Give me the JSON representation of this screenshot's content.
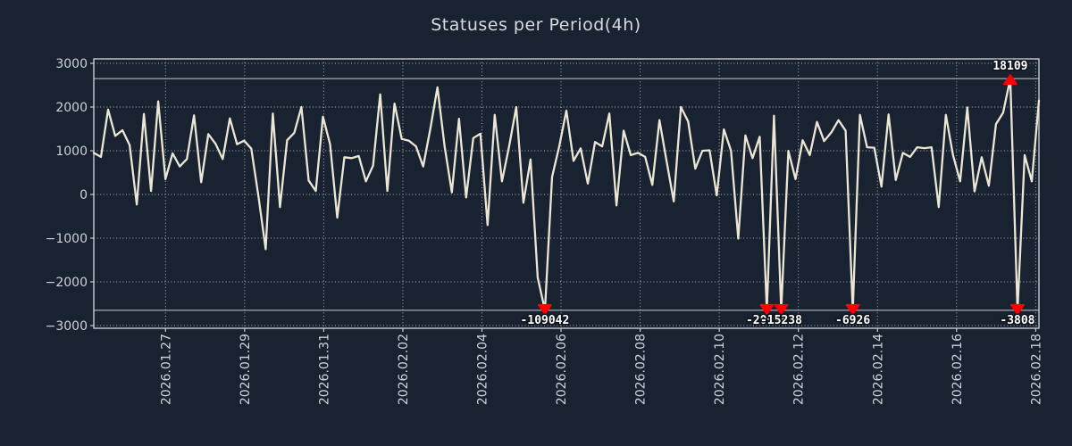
{
  "chart_data": {
    "type": "line",
    "title": "Statuses per Period(4h)",
    "xlabel": "",
    "ylabel": "",
    "period": "4h",
    "ylim": [
      -3000,
      3000
    ],
    "clip_value": 2650,
    "grid": true,
    "legend": null,
    "x_tick_labels": [
      "2026.01.27",
      "2026.01.29",
      "2026.01.31",
      "2026.02.02",
      "2026.02.04",
      "2026.02.06",
      "2026.02.08",
      "2026.02.10",
      "2026.02.12",
      "2026.02.14",
      "2026.02.16",
      "2026.02.18"
    ],
    "y_ticks": [
      3000,
      2000,
      1000,
      0,
      -1000,
      -2000,
      -3000
    ],
    "y_tick_labels": [
      "3000",
      "2000",
      "1000",
      "0",
      "−1000",
      "−2000",
      "−3000"
    ],
    "series": [
      {
        "name": "statuses",
        "values": [
          950,
          860,
          1940,
          1340,
          1470,
          1130,
          -230,
          1840,
          80,
          2130,
          350,
          940,
          640,
          810,
          1810,
          280,
          1380,
          1160,
          810,
          1740,
          1150,
          1230,
          1050,
          -40,
          -1250,
          1850,
          -290,
          1240,
          1410,
          2000,
          320,
          80,
          1780,
          1150,
          -530,
          850,
          830,
          880,
          300,
          660,
          2290,
          80,
          2080,
          1270,
          1230,
          1100,
          640,
          1500,
          2450,
          1100,
          50,
          1730,
          -70,
          1290,
          1390,
          -700,
          1820,
          300,
          1100,
          2000,
          -190,
          800,
          -1900,
          -109042,
          400,
          1100,
          1918,
          770,
          1055,
          250,
          1200,
          1100,
          1850,
          -250,
          1460,
          900,
          950,
          860,
          220,
          1700,
          760,
          -160,
          2000,
          1670,
          590,
          1000,
          1010,
          -20,
          1490,
          1000,
          -1010,
          1350,
          830,
          1320,
          -20925,
          1800,
          -15238,
          1000,
          350,
          1240,
          900,
          1660,
          1220,
          1420,
          1700,
          1460,
          -6926,
          1820,
          1080,
          1070,
          180,
          1830,
          330,
          950,
          860,
          1080,
          1060,
          1080,
          -290,
          1820,
          900,
          300,
          1990,
          70,
          850,
          200,
          1610,
          1870,
          18109,
          -3808,
          900,
          300,
          2150
        ]
      }
    ],
    "annotations": [
      {
        "index": 63,
        "value": -109042,
        "label": "-109042"
      },
      {
        "index": 94,
        "value": -20925,
        "label": "-20925"
      },
      {
        "index": 96,
        "value": -15238,
        "label": "-15238"
      },
      {
        "index": 106,
        "value": -6926,
        "label": "-6926"
      },
      {
        "index": 128,
        "value": 18109,
        "label": "18109"
      },
      {
        "index": 129,
        "value": -3808,
        "label": "-3808"
      }
    ],
    "colors": {
      "background": "#192231",
      "line": "#ece6d4",
      "grid": "#c9cbd0",
      "axis": "#c9cbd0",
      "ref_line": "#c9cbd0",
      "marker": "#ff0000",
      "annotation_text": "#ffffff",
      "annotation_outline": "#10151d",
      "title_text": "#d8dbe0",
      "tick_text": "#ced2d8"
    }
  }
}
